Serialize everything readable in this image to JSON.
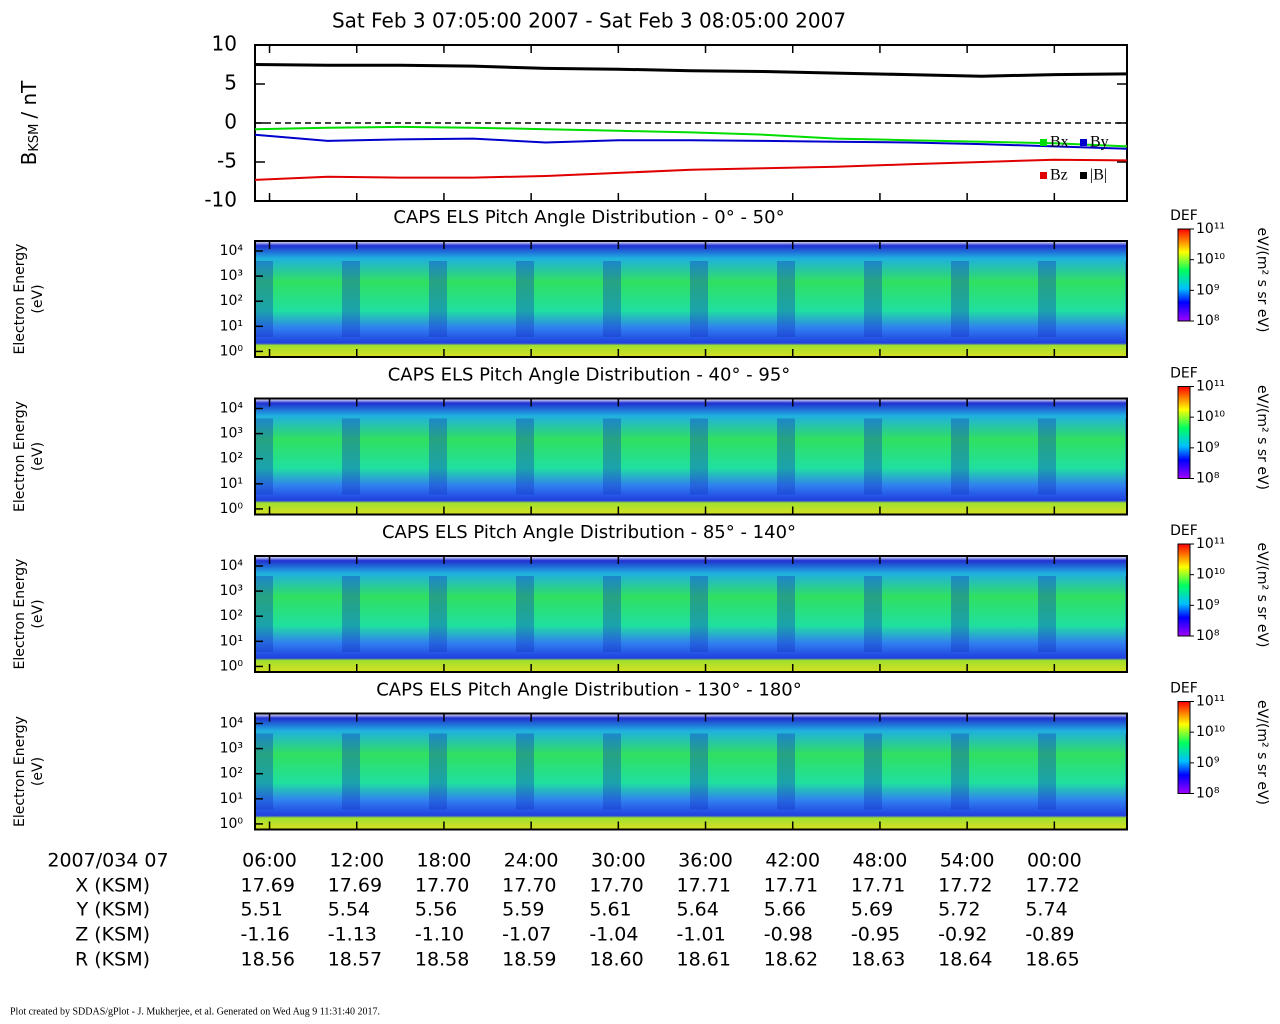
{
  "title": "Sat Feb 3 07:05:00 2007 - Sat Feb 3 08:05:00 2007",
  "chart_data": [
    {
      "type": "line",
      "y_label_symbol": "B",
      "y_label_subscript": "KSM",
      "y_label_unit": "/ nT",
      "x": [
        5,
        10,
        15,
        20,
        25,
        30,
        35,
        40,
        45,
        50,
        55,
        60,
        65
      ],
      "xlim": [
        5,
        65
      ],
      "xticks": [
        {
          "value": 6,
          "label": "06:00"
        },
        {
          "value": 12,
          "label": "12:00"
        },
        {
          "value": 18,
          "label": "18:00"
        },
        {
          "value": 24,
          "label": "24:00"
        },
        {
          "value": 30,
          "label": "30:00"
        },
        {
          "value": 36,
          "label": "36:00"
        },
        {
          "value": 42,
          "label": "42:00"
        },
        {
          "value": 48,
          "label": "48:00"
        },
        {
          "value": 54,
          "label": "54:00"
        },
        {
          "value": 60,
          "label": "00:00"
        }
      ],
      "ylim": [
        -10,
        10
      ],
      "yticks": [
        -10,
        -5,
        0,
        5,
        10
      ],
      "legend": "lower right",
      "series": [
        {
          "name": "Bx",
          "color": "#00dd00",
          "values": [
            -0.8,
            -0.6,
            -0.5,
            -0.6,
            -0.8,
            -1.0,
            -1.2,
            -1.5,
            -2.0,
            -2.2,
            -2.4,
            -2.6,
            -3.0
          ]
        },
        {
          "name": "By",
          "color": "#0000cc",
          "values": [
            -1.5,
            -2.3,
            -2.1,
            -2.0,
            -2.5,
            -2.2,
            -2.2,
            -2.3,
            -2.4,
            -2.5,
            -2.7,
            -3.0,
            -3.3
          ]
        },
        {
          "name": "Bz",
          "color": "#e00000",
          "values": [
            -7.3,
            -6.9,
            -7.0,
            -7.0,
            -6.8,
            -6.4,
            -6.0,
            -5.8,
            -5.6,
            -5.3,
            -5.0,
            -4.7,
            -4.8
          ]
        },
        {
          "name": "|B|",
          "color": "#000000",
          "values": [
            7.5,
            7.4,
            7.4,
            7.3,
            7.0,
            6.9,
            6.7,
            6.6,
            6.4,
            6.2,
            6.0,
            6.2,
            6.3
          ]
        }
      ]
    },
    {
      "type": "spectrogram",
      "title": "CAPS ELS Pitch Angle Distribution - 0° - 50°",
      "y_label": [
        "Electron Energy",
        "(eV)"
      ],
      "log_y": true,
      "ylim": [
        0.6,
        25000
      ],
      "yticks": [
        {
          "value": 1,
          "label": "10⁰"
        },
        {
          "value": 10,
          "label": "10¹"
        },
        {
          "value": 100,
          "label": "10²"
        },
        {
          "value": 1000,
          "label": "10³"
        },
        {
          "value": 10000,
          "label": "10⁴"
        }
      ],
      "colorbar_label": "DEF",
      "colorbar_unit": "eV/(m² s sr eV)",
      "clim": [
        100000000,
        100000000000
      ],
      "cticks": [
        {
          "value": 100000000,
          "label": "10⁸"
        },
        {
          "value": 1000000000,
          "label": "10⁹"
        },
        {
          "value": 10000000000,
          "label": "10¹⁰"
        },
        {
          "value": 100000000000,
          "label": "10¹¹"
        }
      ]
    },
    {
      "type": "spectrogram",
      "title": "CAPS ELS Pitch Angle Distribution - 40° - 95°",
      "y_label": [
        "Electron Energy",
        "(eV)"
      ],
      "log_y": true,
      "ylim": [
        0.6,
        25000
      ],
      "yticks": [
        {
          "value": 1,
          "label": "10⁰"
        },
        {
          "value": 10,
          "label": "10¹"
        },
        {
          "value": 100,
          "label": "10²"
        },
        {
          "value": 1000,
          "label": "10³"
        },
        {
          "value": 10000,
          "label": "10⁴"
        }
      ],
      "colorbar_label": "DEF",
      "colorbar_unit": "eV/(m² s sr eV)",
      "clim": [
        100000000,
        100000000000
      ],
      "cticks": [
        {
          "value": 100000000,
          "label": "10⁸"
        },
        {
          "value": 1000000000,
          "label": "10⁹"
        },
        {
          "value": 10000000000,
          "label": "10¹⁰"
        },
        {
          "value": 100000000000,
          "label": "10¹¹"
        }
      ]
    },
    {
      "type": "spectrogram",
      "title": "CAPS ELS Pitch Angle Distribution - 85° - 140°",
      "y_label": [
        "Electron Energy",
        "(eV)"
      ],
      "log_y": true,
      "ylim": [
        0.6,
        25000
      ],
      "yticks": [
        {
          "value": 1,
          "label": "10⁰"
        },
        {
          "value": 10,
          "label": "10¹"
        },
        {
          "value": 100,
          "label": "10²"
        },
        {
          "value": 1000,
          "label": "10³"
        },
        {
          "value": 10000,
          "label": "10⁴"
        }
      ],
      "colorbar_label": "DEF",
      "colorbar_unit": "eV/(m² s sr eV)",
      "clim": [
        100000000,
        100000000000
      ],
      "cticks": [
        {
          "value": 100000000,
          "label": "10⁸"
        },
        {
          "value": 1000000000,
          "label": "10⁹"
        },
        {
          "value": 10000000000,
          "label": "10¹⁰"
        },
        {
          "value": 100000000000,
          "label": "10¹¹"
        }
      ]
    },
    {
      "type": "spectrogram",
      "title": "CAPS ELS Pitch Angle Distribution - 130° - 180°",
      "y_label": [
        "Electron Energy",
        "(eV)"
      ],
      "log_y": true,
      "ylim": [
        0.6,
        25000
      ],
      "yticks": [
        {
          "value": 1,
          "label": "10⁰"
        },
        {
          "value": 10,
          "label": "10¹"
        },
        {
          "value": 100,
          "label": "10²"
        },
        {
          "value": 1000,
          "label": "10³"
        },
        {
          "value": 10000,
          "label": "10⁴"
        }
      ],
      "colorbar_label": "DEF",
      "colorbar_unit": "eV/(m² s sr eV)",
      "clim": [
        100000000,
        100000000000
      ],
      "cticks": [
        {
          "value": 100000000,
          "label": "10⁸"
        },
        {
          "value": 1000000000,
          "label": "10⁹"
        },
        {
          "value": 10000000000,
          "label": "10¹⁰"
        },
        {
          "value": 100000000000,
          "label": "10¹¹"
        }
      ]
    }
  ],
  "ephemeris": {
    "date_label": "2007/034 07",
    "rows": [
      {
        "label": "X (KSM)",
        "values": [
          "17.69",
          "17.69",
          "17.70",
          "17.70",
          "17.70",
          "17.71",
          "17.71",
          "17.71",
          "17.72",
          "17.72"
        ]
      },
      {
        "label": "Y (KSM)",
        "values": [
          "5.51",
          "5.54",
          "5.56",
          "5.59",
          "5.61",
          "5.64",
          "5.66",
          "5.69",
          "5.72",
          "5.74"
        ]
      },
      {
        "label": "Z (KSM)",
        "values": [
          "-1.16",
          "-1.13",
          "-1.10",
          "-1.07",
          "-1.04",
          "-1.01",
          "-0.98",
          "-0.95",
          "-0.92",
          "-0.89"
        ]
      },
      {
        "label": "R (KSM)",
        "values": [
          "18.56",
          "18.57",
          "18.58",
          "18.59",
          "18.60",
          "18.61",
          "18.62",
          "18.63",
          "18.64",
          "18.65"
        ]
      }
    ]
  },
  "footer": "Plot created by SDDAS/gPlot - J. Mukherjee, et al.  Generated on Wed Aug 9 11:31:40 2017."
}
